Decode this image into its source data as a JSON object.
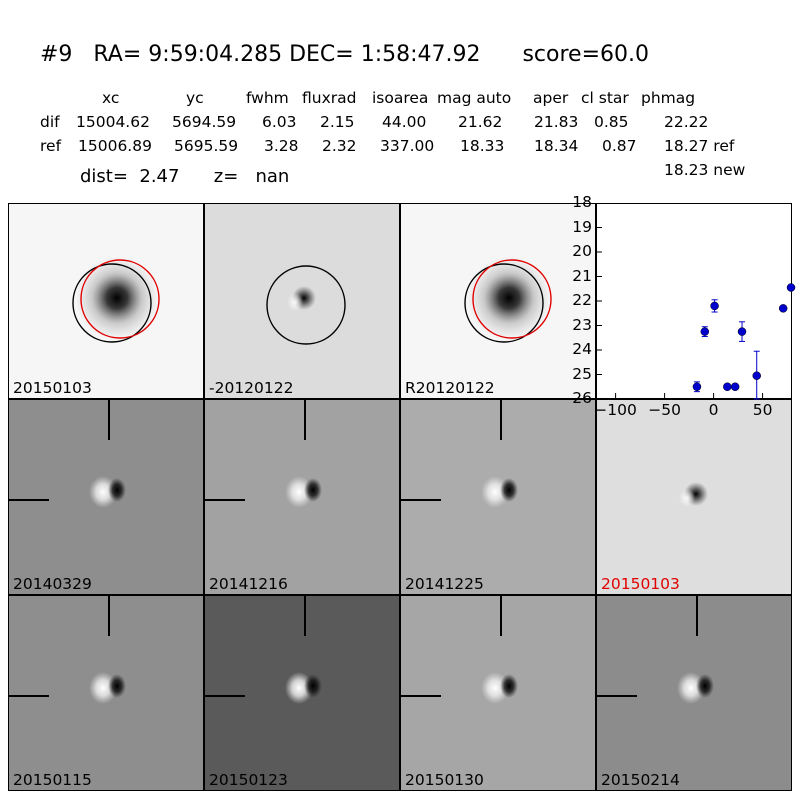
{
  "title": "#9   RA= 9:59:04.285 DEC= 1:58:47.92      score=60.0",
  "table": {
    "headers": [
      "xc",
      "yc",
      "fwhm",
      "fluxrad",
      "isoarea",
      "mag auto",
      "aper",
      "cl star",
      "phmag"
    ],
    "rows": [
      {
        "name": "dif",
        "values": [
          "15004.62",
          "5694.59",
          "6.03",
          "2.15",
          "44.00",
          "21.62",
          "21.83",
          "0.85",
          "22.22"
        ]
      },
      {
        "name": "ref",
        "values": [
          "15006.89",
          "5695.59",
          "3.28",
          "2.32",
          "337.00",
          "18.33",
          "18.34",
          "0.87",
          "18.27 ref"
        ]
      }
    ],
    "extra": "18.23 new"
  },
  "dist_line": "dist=  2.47      z=   nan",
  "panels": [
    {
      "label": "20150103",
      "bg": "#f6f6f6",
      "type": "ref",
      "label_color": "#000000"
    },
    {
      "label": "-20120122",
      "bg": "#dcdcdc",
      "type": "dif",
      "label_color": "#000000"
    },
    {
      "label": "R20120122",
      "bg": "#f6f6f6",
      "type": "ref",
      "label_color": "#000000"
    },
    {
      "label": "20140329",
      "bg": "#8e8e8e",
      "type": "dipole",
      "label_color": "#000000"
    },
    {
      "label": "20141216",
      "bg": "#a2a2a2",
      "type": "dipole",
      "label_color": "#000000"
    },
    {
      "label": "20141225",
      "bg": "#acacac",
      "type": "dipole",
      "label_color": "#000000"
    },
    {
      "label": "20150103",
      "bg": "#dedede",
      "type": "dif",
      "label_color": "#e00000"
    },
    {
      "label": "20150115",
      "bg": "#8e8e8e",
      "type": "dipole",
      "label_color": "#000000"
    },
    {
      "label": "20150123",
      "bg": "#5a5a5a",
      "type": "dipole",
      "label_color": "#000000"
    },
    {
      "label": "20150130",
      "bg": "#a6a6a6",
      "type": "dipole",
      "label_color": "#000000"
    },
    {
      "label": "20150214",
      "bg": "#8c8c8c",
      "type": "dipole",
      "label_color": "#000000"
    }
  ],
  "chart_data": {
    "type": "scatter",
    "xlim": [
      -120,
      80
    ],
    "ylim": [
      26,
      18
    ],
    "xticks": [
      -100,
      -50,
      0,
      50
    ],
    "yticks": [
      18,
      19,
      20,
      21,
      22,
      23,
      24,
      25,
      26
    ],
    "color": "#0000cc",
    "points": [
      {
        "x": -17,
        "y": 25.5,
        "err": 0.2
      },
      {
        "x": -9,
        "y": 23.25,
        "err": 0.2
      },
      {
        "x": 1,
        "y": 22.2,
        "err": 0.25
      },
      {
        "x": 14,
        "y": 25.5,
        "err": 0.1
      },
      {
        "x": 22,
        "y": 25.5,
        "err": 0.1
      },
      {
        "x": 29,
        "y": 23.25,
        "err": 0.4
      },
      {
        "x": 44,
        "y": 25.05,
        "err": 1.0
      },
      {
        "x": 71,
        "y": 22.3,
        "err": 0.1
      },
      {
        "x": 79,
        "y": 21.45,
        "err": 0.1
      }
    ]
  }
}
